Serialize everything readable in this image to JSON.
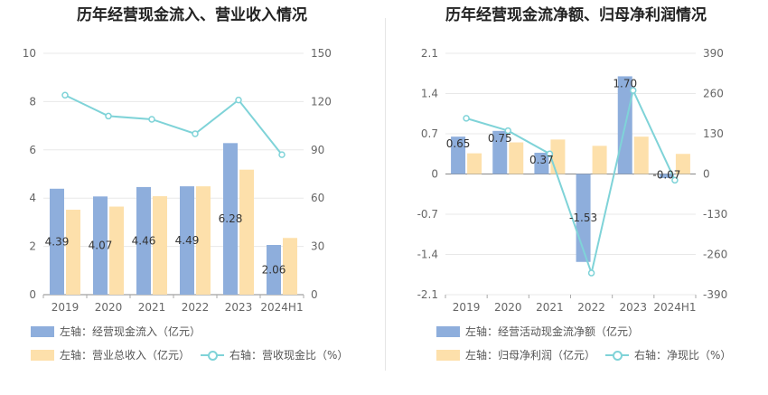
{
  "charts": {
    "left": {
      "title": "历年经营现金流入、营业收入情况"
    },
    "right": {
      "title": "历年经营现金流净额、归母净利润情况"
    }
  },
  "legend": {
    "left": [
      {
        "label": "左轴：经营现金流入（亿元）",
        "color": "#8eaedc",
        "kind": "bar"
      },
      {
        "label": "左轴：营业总收入（亿元）",
        "color": "#fde0ab",
        "kind": "bar"
      },
      {
        "label": "右轴：营收现金比（%）",
        "color": "#7fd3d8",
        "kind": "line"
      }
    ],
    "right": [
      {
        "label": "左轴：经营活动现金流净额（亿元）",
        "color": "#8eaedc",
        "kind": "bar"
      },
      {
        "label": "左轴：归母净利润（亿元）",
        "color": "#fde0ab",
        "kind": "bar"
      },
      {
        "label": "右轴：净现比（%）",
        "color": "#7fd3d8",
        "kind": "line"
      }
    ]
  },
  "chart_data": [
    {
      "type": "bar",
      "title": "历年经营现金流入、营业收入情况",
      "categories": [
        "2019",
        "2020",
        "2021",
        "2022",
        "2023",
        "2024H1"
      ],
      "y_left": {
        "min": 0,
        "max": 10,
        "ticks": [
          0,
          2,
          4,
          6,
          8,
          10
        ]
      },
      "y_right": {
        "min": 0,
        "max": 150,
        "ticks": [
          0,
          30,
          60,
          90,
          120,
          150
        ]
      },
      "series": [
        {
          "name": "左轴：经营现金流入（亿元）",
          "type": "bar",
          "axis": "left",
          "color": "#8eaedc",
          "values": [
            4.39,
            4.07,
            4.46,
            4.49,
            6.28,
            2.06
          ],
          "labels": [
            "4.39",
            "4.07",
            "4.46",
            "4.49",
            "6.28",
            "2.06"
          ]
        },
        {
          "name": "左轴：营业总收入（亿元）",
          "type": "bar",
          "axis": "left",
          "color": "#fde0ab",
          "values": [
            3.52,
            3.65,
            4.08,
            4.49,
            5.18,
            2.35
          ]
        },
        {
          "name": "右轴：营收现金比（%）",
          "type": "line",
          "axis": "right",
          "color": "#7fd3d8",
          "values": [
            124,
            111,
            109,
            100,
            121,
            87
          ]
        }
      ]
    },
    {
      "type": "bar",
      "title": "历年经营现金流净额、归母净利润情况",
      "categories": [
        "2019",
        "2020",
        "2021",
        "2022",
        "2023",
        "2024H1"
      ],
      "y_left": {
        "min": -2.1,
        "max": 2.1,
        "ticks": [
          -2.1,
          -1.4,
          -0.7,
          0,
          0.7,
          1.4,
          2.1
        ]
      },
      "y_right": {
        "min": -390,
        "max": 390,
        "ticks": [
          -390,
          -260,
          -130,
          0,
          130,
          260,
          390
        ]
      },
      "series": [
        {
          "name": "左轴：经营活动现金流净额（亿元）",
          "type": "bar",
          "axis": "left",
          "color": "#8eaedc",
          "values": [
            0.65,
            0.75,
            0.37,
            -1.53,
            1.7,
            -0.07
          ],
          "labels": [
            "0.65",
            "0.75",
            "0.37",
            "-1.53",
            "1.70",
            "-0.07"
          ]
        },
        {
          "name": "左轴：归母净利润（亿元）",
          "type": "bar",
          "axis": "left",
          "color": "#fde0ab",
          "values": [
            0.36,
            0.55,
            0.6,
            0.49,
            0.65,
            0.35
          ]
        },
        {
          "name": "右轴：净现比（%）",
          "type": "line",
          "axis": "right",
          "color": "#7fd3d8",
          "values": [
            180,
            140,
            65,
            -320,
            270,
            -20
          ]
        }
      ]
    }
  ]
}
